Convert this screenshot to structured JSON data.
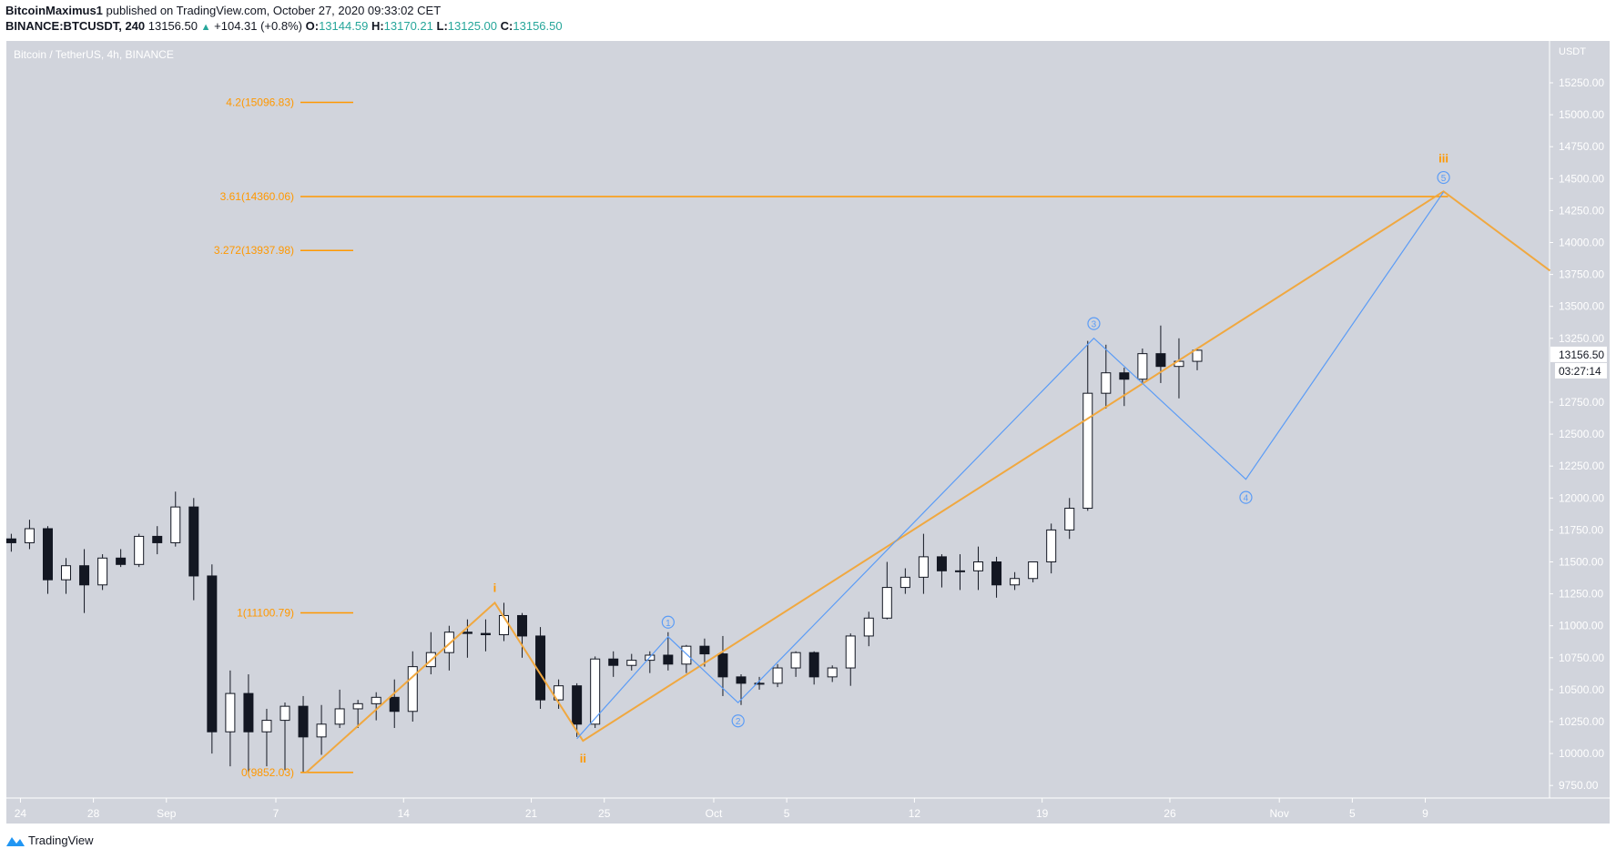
{
  "header": {
    "author": "BitcoinMaximus1",
    "published": "published on TradingView.com, October 27, 2020 09:33:02 CET",
    "symbol": "BINANCE:BTCUSDT, 240",
    "last": "13156.50",
    "change": "+104.31 (+0.8%)",
    "o_label": "O:",
    "o": "13144.59",
    "h_label": "H:",
    "h": "13170.21",
    "l_label": "L:",
    "l": "13125.00",
    "c_label": "C:",
    "c": "13156.50"
  },
  "footer": {
    "brand": "TradingView"
  },
  "colors": {
    "background": "#d1d4dc",
    "fib": "#ff9800",
    "wave_orange": "#f0a840",
    "wave_blue": "#5b9cf6",
    "up": "#ffffff",
    "down": "#131722"
  },
  "chart_data": {
    "type": "candlestick",
    "title": "Bitcoin / TetherUS, 4h, BINANCE",
    "currency": "USDT",
    "ylim": [
      9700,
      15400
    ],
    "y_ticks": [
      "15250.00",
      "15000.00",
      "14750.00",
      "14500.00",
      "14250.00",
      "14000.00",
      "13750.00",
      "13500.00",
      "13250.00",
      "12750.00",
      "12500.00",
      "12250.00",
      "12000.00",
      "11750.00",
      "11500.00",
      "11250.00",
      "11000.00",
      "10750.00",
      "10500.00",
      "10250.00",
      "10000.00",
      "9750.00"
    ],
    "x_ticks": [
      {
        "date": "2020-08-24",
        "label": "24"
      },
      {
        "date": "2020-08-28",
        "label": "28"
      },
      {
        "date": "2020-09-01",
        "label": "Sep"
      },
      {
        "date": "2020-09-07",
        "label": "7"
      },
      {
        "date": "2020-09-14",
        "label": "14"
      },
      {
        "date": "2020-09-21",
        "label": "21"
      },
      {
        "date": "2020-09-25",
        "label": "25"
      },
      {
        "date": "2020-10-01",
        "label": "Oct"
      },
      {
        "date": "2020-10-05",
        "label": "5"
      },
      {
        "date": "2020-10-12",
        "label": "12"
      },
      {
        "date": "2020-10-19",
        "label": "19"
      },
      {
        "date": "2020-10-26",
        "label": "26"
      },
      {
        "date": "2020-11-01",
        "label": "Nov"
      },
      {
        "date": "2020-11-05",
        "label": "5"
      },
      {
        "date": "2020-11-09",
        "label": "9"
      }
    ],
    "last_price_label": "13156.50",
    "countdown": "03:27:14",
    "candles": [
      [
        "2020-08-23",
        11680,
        11720,
        11580,
        11650
      ],
      [
        "2020-08-24",
        11650,
        11830,
        11600,
        11760
      ],
      [
        "2020-08-25",
        11760,
        11780,
        11250,
        11360
      ],
      [
        "2020-08-26",
        11360,
        11530,
        11250,
        11470
      ],
      [
        "2020-08-27",
        11470,
        11600,
        11100,
        11320
      ],
      [
        "2020-08-28",
        11320,
        11560,
        11280,
        11530
      ],
      [
        "2020-08-29",
        11530,
        11600,
        11460,
        11480
      ],
      [
        "2020-08-30",
        11480,
        11720,
        11460,
        11700
      ],
      [
        "2020-08-31",
        11700,
        11780,
        11560,
        11650
      ],
      [
        "2020-09-01",
        11650,
        12050,
        11620,
        11930
      ],
      [
        "2020-09-02",
        11930,
        12000,
        11200,
        11390
      ],
      [
        "2020-09-03",
        11390,
        11480,
        10000,
        10170
      ],
      [
        "2020-09-04",
        10170,
        10650,
        9900,
        10470
      ],
      [
        "2020-09-05",
        10470,
        10620,
        9850,
        10170
      ],
      [
        "2020-09-06",
        10170,
        10350,
        9900,
        10260
      ],
      [
        "2020-09-07",
        10260,
        10400,
        9870,
        10370
      ],
      [
        "2020-09-08",
        10370,
        10450,
        9850,
        10130
      ],
      [
        "2020-09-09",
        10130,
        10380,
        9990,
        10230
      ],
      [
        "2020-09-10",
        10230,
        10500,
        10200,
        10350
      ],
      [
        "2020-09-11",
        10350,
        10420,
        10200,
        10390
      ],
      [
        "2020-09-12",
        10390,
        10480,
        10260,
        10440
      ],
      [
        "2020-09-13",
        10440,
        10580,
        10200,
        10330
      ],
      [
        "2020-09-14",
        10330,
        10800,
        10250,
        10680
      ],
      [
        "2020-09-15",
        10680,
        10950,
        10620,
        10790
      ],
      [
        "2020-09-16",
        10790,
        11000,
        10650,
        10950
      ],
      [
        "2020-09-17",
        10950,
        11050,
        10750,
        10940
      ],
      [
        "2020-09-18",
        10940,
        11050,
        10800,
        10930
      ],
      [
        "2020-09-19",
        10930,
        11180,
        10880,
        11080
      ],
      [
        "2020-09-20",
        11080,
        11100,
        10750,
        10920
      ],
      [
        "2020-09-21",
        10920,
        10990,
        10350,
        10420
      ],
      [
        "2020-09-22",
        10420,
        10580,
        10350,
        10530
      ],
      [
        "2020-09-23",
        10530,
        10550,
        10130,
        10230
      ],
      [
        "2020-09-24",
        10230,
        10760,
        10200,
        10740
      ],
      [
        "2020-09-25",
        10740,
        10800,
        10600,
        10690
      ],
      [
        "2020-09-26",
        10690,
        10780,
        10650,
        10730
      ],
      [
        "2020-09-27",
        10730,
        10800,
        10630,
        10770
      ],
      [
        "2020-09-28",
        10770,
        10950,
        10650,
        10700
      ],
      [
        "2020-09-29",
        10700,
        10850,
        10630,
        10840
      ],
      [
        "2020-09-30",
        10840,
        10900,
        10680,
        10780
      ],
      [
        "2020-10-01",
        10780,
        10920,
        10450,
        10600
      ],
      [
        "2020-10-02",
        10600,
        10620,
        10380,
        10550
      ],
      [
        "2020-10-03",
        10550,
        10600,
        10500,
        10550
      ],
      [
        "2020-10-04",
        10550,
        10700,
        10520,
        10670
      ],
      [
        "2020-10-05",
        10670,
        10800,
        10600,
        10790
      ],
      [
        "2020-10-06",
        10790,
        10800,
        10540,
        10600
      ],
      [
        "2020-10-07",
        10600,
        10690,
        10560,
        10670
      ],
      [
        "2020-10-08",
        10670,
        10940,
        10530,
        10920
      ],
      [
        "2020-10-09",
        10920,
        11110,
        10840,
        11060
      ],
      [
        "2020-10-10",
        11060,
        11500,
        11050,
        11300
      ],
      [
        "2020-10-11",
        11300,
        11450,
        11250,
        11380
      ],
      [
        "2020-10-12",
        11380,
        11720,
        11250,
        11540
      ],
      [
        "2020-10-13",
        11540,
        11560,
        11300,
        11430
      ],
      [
        "2020-10-14",
        11430,
        11560,
        11280,
        11430
      ],
      [
        "2020-10-15",
        11430,
        11620,
        11280,
        11500
      ],
      [
        "2020-10-16",
        11500,
        11540,
        11220,
        11320
      ],
      [
        "2020-10-17",
        11320,
        11420,
        11280,
        11370
      ],
      [
        "2020-10-18",
        11370,
        11500,
        11340,
        11500
      ],
      [
        "2020-10-19",
        11500,
        11800,
        11410,
        11750
      ],
      [
        "2020-10-20",
        11750,
        12000,
        11680,
        11920
      ],
      [
        "2020-10-21",
        11920,
        13230,
        11900,
        12820
      ],
      [
        "2020-10-22",
        12820,
        13200,
        12700,
        12980
      ],
      [
        "2020-10-23",
        12980,
        13020,
        12720,
        12930
      ],
      [
        "2020-10-24",
        12930,
        13170,
        12890,
        13130
      ],
      [
        "2020-10-25",
        13130,
        13350,
        12900,
        13030
      ],
      [
        "2020-10-26",
        13030,
        13250,
        12780,
        13070
      ],
      [
        "2020-10-27",
        13070,
        13170,
        13000,
        13156.5
      ]
    ],
    "fib_levels": [
      {
        "label": "4.2(15096.83)",
        "price": 15096.83
      },
      {
        "label": "3.61(14360.06)",
        "price": 14360.06,
        "extended_to": "2020-11-10T06:00"
      },
      {
        "label": "3.272(13937.98)",
        "price": 13937.98
      },
      {
        "label": "1(11100.79)",
        "price": 11100.79
      },
      {
        "label": "0(9852.03)",
        "price": 9852.03
      }
    ],
    "orange_wave": [
      {
        "t": "2020-09-08T16:00",
        "p": 9852.03
      },
      {
        "t": "2020-09-19T00:00",
        "p": 11180,
        "label": "i",
        "pos": "above"
      },
      {
        "t": "2020-09-23T20:00",
        "p": 10100,
        "label": "ii",
        "pos": "below"
      },
      {
        "t": "2020-11-10T00:00",
        "p": 14400,
        "label": "iii",
        "pos": "above2"
      },
      {
        "t": "2020-11-15T20:00",
        "p": 13780
      }
    ],
    "blue_wave": [
      {
        "t": "2020-09-23T12:00",
        "p": 10116
      },
      {
        "t": "2020-09-28T12:00",
        "p": 10914,
        "label": "1",
        "pos": "above"
      },
      {
        "t": "2020-10-02T08:00",
        "p": 10398,
        "label": "2",
        "pos": "below"
      },
      {
        "t": "2020-10-21T20:00",
        "p": 13251,
        "label": "3",
        "pos": "above"
      },
      {
        "t": "2020-10-30T04:00",
        "p": 12147,
        "label": "4",
        "pos": "below"
      },
      {
        "t": "2020-11-10T00:00",
        "p": 14395,
        "label": "5",
        "pos": "above"
      }
    ]
  }
}
